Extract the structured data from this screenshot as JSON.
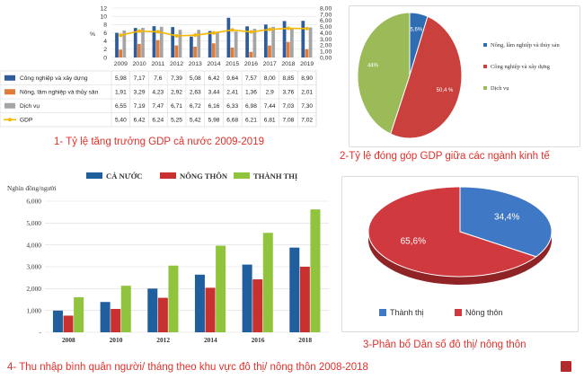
{
  "captions": {
    "c1": "1- Tỷ lệ tăng trưởng GDP cả nước 2009-2019",
    "c2": "2-Tỷ lệ đóng góp GDP giữa các ngành kinh tế",
    "c3": "3-Phân bổ Dân số đô thị/ nông thôn",
    "c4": "4- Thu nhập bình quân người/ tháng theo khu vực đô thị/ nông thôn 2008-2018"
  },
  "chart_data": [
    {
      "type": "bar",
      "title": "",
      "ylabel": "%",
      "ylim": [
        0,
        12
      ],
      "yticks": [
        "0",
        "2",
        "4",
        "6",
        "8",
        "10",
        "12"
      ],
      "ylim_right": [
        0,
        8
      ],
      "yticks_right": [
        "0,00",
        "1,00",
        "2,00",
        "3,00",
        "4,00",
        "5,00",
        "6,00",
        "7,00",
        "8,00"
      ],
      "categories": [
        "2009",
        "2010",
        "2011",
        "2012",
        "2013",
        "2014",
        "2015",
        "2016",
        "2017",
        "2018",
        "2019"
      ],
      "series": [
        {
          "name": "Công nghiệp và xây dựng",
          "kind": "bar",
          "color": "#2e5c9a",
          "values": [
            5.98,
            7.17,
            7.6,
            7.39,
            5.08,
            6.42,
            9.64,
            7.57,
            8.0,
            8.85,
            8.9
          ],
          "labels": [
            "5,98",
            "7,17",
            "7,6",
            "7,39",
            "5,08",
            "6,42",
            "9,64",
            "7,57",
            "8,00",
            "8,85",
            "8,90"
          ]
        },
        {
          "name": "Nông, lâm nghiệp và thủy sản",
          "kind": "bar",
          "color": "#e07b39",
          "values": [
            1.91,
            3.29,
            4.23,
            2.92,
            2.63,
            3.44,
            2.41,
            1.36,
            2.9,
            3.76,
            2.01
          ],
          "labels": [
            "1,91",
            "3,29",
            "4,23",
            "2,92",
            "2,63",
            "3,44",
            "2,41",
            "1,36",
            "2,9",
            "3,76",
            "2,01"
          ]
        },
        {
          "name": "Dịch vụ",
          "kind": "bar",
          "color": "#a5a5a5",
          "values": [
            6.55,
            7.19,
            7.47,
            6.71,
            6.72,
            6.16,
            6.33,
            6.98,
            7.44,
            7.03,
            7.3
          ],
          "labels": [
            "6,55",
            "7,19",
            "7,47",
            "6,71",
            "6,72",
            "6,16",
            "6,33",
            "6,98",
            "7,44",
            "7,03",
            "7,30"
          ]
        },
        {
          "name": "GDP",
          "kind": "line",
          "color": "#f5b800",
          "values": [
            5.4,
            6.42,
            6.24,
            5.25,
            5.42,
            5.98,
            6.68,
            6.21,
            6.81,
            7.08,
            7.02
          ],
          "labels": [
            "5,40",
            "6,42",
            "6,24",
            "5,25",
            "5,42",
            "5,98",
            "6,68",
            "6,21",
            "6,81",
            "7,08",
            "7,02"
          ]
        }
      ]
    },
    {
      "type": "pie",
      "title": "",
      "slices": [
        {
          "name": "Nông, lâm nghiệp và thủy sản",
          "value": 5.6,
          "label": "5,6%",
          "color": "#2f6db3"
        },
        {
          "name": "Công nghiệp và xây dựng",
          "value": 50.4,
          "label": "50,4 %",
          "color": "#c9403d"
        },
        {
          "name": "Dịch vụ",
          "value": 44,
          "label": "44%",
          "color": "#9bbb59"
        }
      ]
    },
    {
      "type": "pie",
      "title": "",
      "slices": [
        {
          "name": "Thành thị",
          "value": 34.4,
          "label": "34,4%",
          "color": "#3f78c4"
        },
        {
          "name": "Nông thôn",
          "value": 65.6,
          "label": "65,6%",
          "color": "#d0393e"
        }
      ]
    },
    {
      "type": "bar",
      "title": "",
      "ylabel": "Nghìn đồng/người",
      "ylim": [
        0,
        6000
      ],
      "yticks": [
        "-",
        "1,000",
        "2,000",
        "3,000",
        "4,000",
        "5,000",
        "6,000"
      ],
      "categories": [
        "2008",
        "2010",
        "2012",
        "2014",
        "2016",
        "2018"
      ],
      "legend_position": "top",
      "series": [
        {
          "name": "CẢ NƯỚC",
          "color": "#1f5f9e",
          "values": [
            995,
            1387,
            2000,
            2637,
            3098,
            3876
          ]
        },
        {
          "name": "NÔNG THÔN",
          "color": "#c8312f",
          "values": [
            762,
            1070,
            1579,
            2038,
            2423,
            3000
          ]
        },
        {
          "name": "THÀNH THỊ",
          "color": "#8fc43c",
          "values": [
            1605,
            2130,
            3053,
            3964,
            4551,
            5624
          ]
        }
      ]
    }
  ]
}
